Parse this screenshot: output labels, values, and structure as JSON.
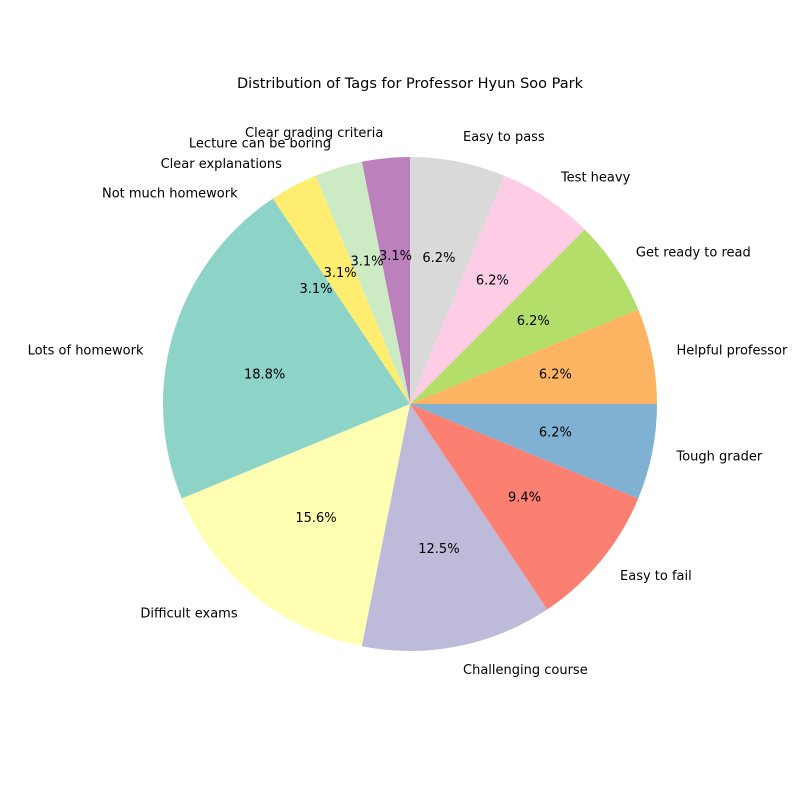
{
  "chart_data": {
    "type": "pie",
    "title": "Distribution of Tags for Professor Hyun Soo Park",
    "start_angle_deg": 135,
    "direction": "counterclockwise",
    "slices": [
      {
        "label": "Lots of homework",
        "value": 6,
        "pct_label": "18.8%",
        "color": "#8dd3c7"
      },
      {
        "label": "Difficult exams",
        "value": 5,
        "pct_label": "15.6%",
        "color": "#ffffb3"
      },
      {
        "label": "Challenging course",
        "value": 4,
        "pct_label": "12.5%",
        "color": "#bebada"
      },
      {
        "label": "Easy to fail",
        "value": 3,
        "pct_label": "9.4%",
        "color": "#fb8072"
      },
      {
        "label": "Tough grader",
        "value": 2,
        "pct_label": "6.2%",
        "color": "#80b1d3"
      },
      {
        "label": "Helpful professor",
        "value": 2,
        "pct_label": "6.2%",
        "color": "#fdb462"
      },
      {
        "label": "Get ready to read",
        "value": 2,
        "pct_label": "6.2%",
        "color": "#b3de69"
      },
      {
        "label": "Test heavy",
        "value": 2,
        "pct_label": "6.2%",
        "color": "#fccde5"
      },
      {
        "label": "Easy to pass",
        "value": 2,
        "pct_label": "6.2%",
        "color": "#d9d9d9"
      },
      {
        "label": "Clear grading criteria",
        "value": 1,
        "pct_label": "3.1%",
        "color": "#bc80bd"
      },
      {
        "label": "Lecture can be boring",
        "value": 1,
        "pct_label": "3.1%",
        "color": "#ccebc5"
      },
      {
        "label": "Clear explanations",
        "value": 1,
        "pct_label": "3.1%",
        "color": "#ffed6f"
      },
      {
        "label": "Not much homework",
        "value": 1,
        "pct_label": "3.1%",
        "color": "#8dd3c7"
      }
    ]
  }
}
